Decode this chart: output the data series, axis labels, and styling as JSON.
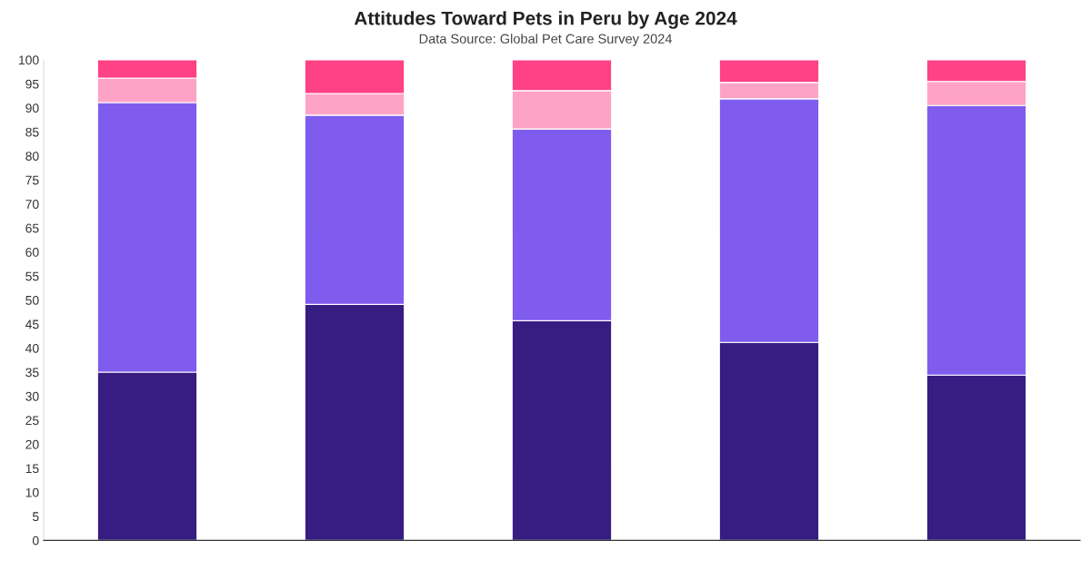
{
  "chart_data": {
    "type": "bar",
    "title": "Attitudes Toward Pets in Peru by Age 2024",
    "subtitle": "Data Source: Global Pet Care Survey 2024",
    "categories": [
      null,
      null,
      null,
      null,
      null
    ],
    "stacked": true,
    "series": [
      {
        "color": "#371c82",
        "values": [
          35.0,
          49.1,
          45.7,
          41.2,
          34.4
        ]
      },
      {
        "color": "#7f5cee",
        "values": [
          56.1,
          39.4,
          39.9,
          50.7,
          56.1
        ]
      },
      {
        "color": "#ffa3c6",
        "values": [
          5.1,
          4.5,
          8.0,
          3.4,
          5.0
        ]
      },
      {
        "color": "#ff4185",
        "values": [
          3.8,
          7.0,
          6.4,
          4.7,
          4.5
        ]
      }
    ],
    "ylim": [
      0,
      100
    ],
    "yticks": [
      0,
      5,
      10,
      15,
      20,
      25,
      30,
      35,
      40,
      45,
      50,
      55,
      60,
      65,
      70,
      75,
      80,
      85,
      90,
      95,
      100
    ],
    "tick_labels": "y",
    "grid": false,
    "legend": false
  }
}
